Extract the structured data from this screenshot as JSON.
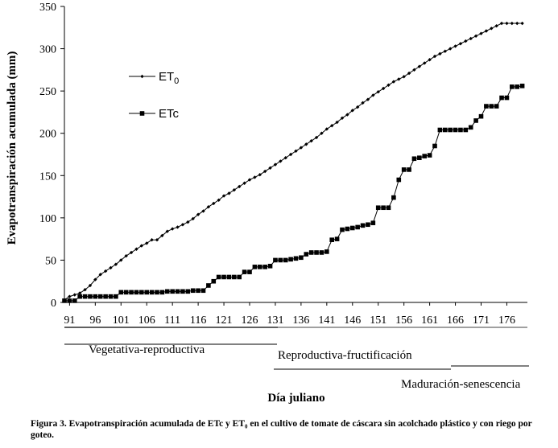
{
  "chart_data": {
    "type": "line",
    "ylabel": "Evapotranspiración acumulada (mm)",
    "xlabel": "Día juliano",
    "ylim": [
      0,
      350
    ],
    "yticks": [
      0,
      50,
      100,
      150,
      200,
      250,
      300,
      350
    ],
    "xlim": [
      90,
      180
    ],
    "xticks": [
      91,
      96,
      101,
      106,
      111,
      116,
      121,
      126,
      131,
      136,
      141,
      146,
      151,
      156,
      161,
      166,
      171,
      176
    ],
    "xtick_labels": [
      "91",
      "96",
      "101",
      "106",
      "111",
      "116",
      "121",
      "126",
      "131",
      "136",
      "141",
      "146",
      "151",
      "156",
      "161",
      "166",
      "171",
      "176"
    ],
    "legend": {
      "position": "top-left",
      "et0": {
        "main": "ET",
        "sub": "0"
      },
      "etc": "ETc"
    },
    "stages": [
      {
        "label": "Vegetativa-reproductiva",
        "start": 91,
        "end": 130
      },
      {
        "label": "Reproductiva-fructificación",
        "start": 129,
        "end": 164
      },
      {
        "label": "Maduración-senescencia",
        "start": 165,
        "end": 179
      }
    ],
    "series": [
      {
        "name": "ET0",
        "marker": "diamond",
        "x": [
          90,
          91,
          92,
          93,
          94,
          95,
          96,
          97,
          98,
          99,
          100,
          101,
          102,
          103,
          104,
          105,
          106,
          107,
          108,
          109,
          110,
          111,
          112,
          113,
          114,
          115,
          116,
          117,
          118,
          119,
          120,
          121,
          122,
          123,
          124,
          125,
          126,
          127,
          128,
          129,
          130,
          131,
          132,
          133,
          134,
          135,
          136,
          137,
          138,
          139,
          140,
          141,
          142,
          143,
          144,
          145,
          146,
          147,
          148,
          149,
          150,
          151,
          152,
          153,
          154,
          155,
          156,
          157,
          158,
          159,
          160,
          161,
          162,
          163,
          164,
          165,
          166,
          167,
          168,
          169,
          170,
          171,
          172,
          173,
          174,
          175,
          176,
          177,
          178,
          179
        ],
        "values": [
          3,
          7,
          9,
          11,
          15,
          20,
          27,
          33,
          37,
          41,
          45,
          50,
          55,
          59,
          63,
          67,
          70,
          74,
          74,
          79,
          84,
          87,
          89,
          92,
          95,
          99,
          104,
          108,
          113,
          117,
          121,
          126,
          129,
          133,
          137,
          141,
          145,
          148,
          151,
          155,
          159,
          163,
          167,
          171,
          175,
          179,
          183,
          187,
          191,
          195,
          200,
          205,
          209,
          213,
          218,
          222,
          227,
          231,
          236,
          240,
          245,
          249,
          253,
          257,
          261,
          264,
          267,
          271,
          275,
          279,
          283,
          287,
          291,
          294,
          297,
          300,
          303,
          306,
          309,
          312,
          315,
          318,
          321,
          324,
          327,
          330,
          330,
          330,
          330,
          330
        ]
      },
      {
        "name": "ETc",
        "marker": "square",
        "x": [
          90,
          91,
          92,
          93,
          94,
          95,
          96,
          97,
          98,
          99,
          100,
          101,
          102,
          103,
          104,
          105,
          106,
          107,
          108,
          109,
          110,
          111,
          112,
          113,
          114,
          115,
          116,
          117,
          118,
          119,
          120,
          121,
          122,
          123,
          124,
          125,
          126,
          127,
          128,
          129,
          130,
          131,
          132,
          133,
          134,
          135,
          136,
          137,
          138,
          139,
          140,
          141,
          142,
          143,
          144,
          145,
          146,
          147,
          148,
          149,
          150,
          151,
          152,
          153,
          154,
          155,
          156,
          157,
          158,
          159,
          160,
          161,
          162,
          163,
          164,
          165,
          166,
          167,
          168,
          169,
          170,
          171,
          172,
          173,
          174,
          175,
          176,
          177,
          178,
          179
        ],
        "values": [
          2,
          2,
          2,
          7,
          7,
          7,
          7,
          7,
          7,
          7,
          7,
          12,
          12,
          12,
          12,
          12,
          12,
          12,
          12,
          12,
          13,
          13,
          13,
          13,
          13,
          14,
          14,
          14,
          20,
          25,
          30,
          30,
          30,
          30,
          30,
          36,
          36,
          42,
          42,
          42,
          43,
          50,
          50,
          50,
          51,
          52,
          53,
          57,
          59,
          59,
          59,
          60,
          74,
          75,
          86,
          87,
          88,
          89,
          91,
          92,
          94,
          112,
          112,
          112,
          124,
          145,
          157,
          157,
          170,
          171,
          173,
          174,
          185,
          204,
          204,
          204,
          204,
          204,
          204,
          207,
          215,
          220,
          232,
          232,
          232,
          242,
          242,
          255,
          255,
          256
        ]
      }
    ]
  },
  "caption": "Figura 3. Evapotranspiración acumulada de ETc y ET₀ en el cultivo de tomate de cáscara sin acolchado plástico y con riego por goteo."
}
